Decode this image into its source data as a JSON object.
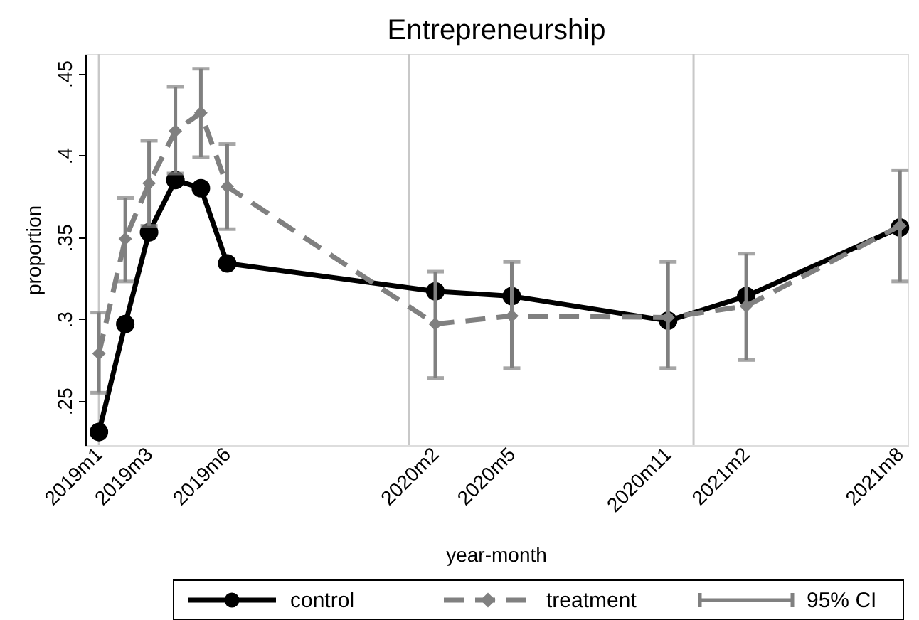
{
  "chart_data": {
    "type": "line",
    "title": "Entrepreneurship",
    "xlabel": "year-month",
    "ylabel": "proportion",
    "x": [
      "2019-01",
      "2019-02",
      "2019-03",
      "2019-04",
      "2019-05",
      "2019-06",
      "2020-02",
      "2020-05",
      "2020-11",
      "2021-02",
      "2021-08"
    ],
    "series": [
      {
        "name": "control",
        "color": "#000000",
        "marker": "circle",
        "line_style": "solid",
        "values": [
          0.231,
          0.297,
          0.353,
          0.385,
          0.38,
          0.334,
          0.317,
          0.314,
          0.299,
          0.314,
          0.356
        ]
      },
      {
        "name": "treatment",
        "color": "#808080",
        "marker": "diamond",
        "line_style": "dashed",
        "values": [
          0.279,
          0.349,
          0.383,
          0.415,
          0.426,
          0.381,
          0.297,
          0.302,
          0.301,
          0.308,
          0.357
        ],
        "errors": [
          [
            0.255,
            0.304
          ],
          [
            0.323,
            0.374
          ],
          [
            0.357,
            0.409
          ],
          [
            0.389,
            0.442
          ],
          [
            0.399,
            0.453
          ],
          [
            0.355,
            0.407
          ],
          [
            0.264,
            0.329
          ],
          [
            0.27,
            0.335
          ],
          [
            0.27,
            0.335
          ],
          [
            0.275,
            0.34
          ],
          [
            0.323,
            0.391
          ]
        ]
      }
    ],
    "ylim": [
      0.223,
      0.462
    ],
    "yticks": [
      {
        "value": 0.25,
        "label": ".25"
      },
      {
        "value": 0.3,
        "label": ".3"
      },
      {
        "value": 0.35,
        "label": ".35"
      },
      {
        "value": 0.4,
        "label": ".4"
      },
      {
        "value": 0.45,
        "label": ".45"
      }
    ],
    "xlim": [
      "2018-12-16",
      "2021-08-10"
    ],
    "xticks": [
      {
        "value": "2019-01",
        "label": "2019m1"
      },
      {
        "value": "2019-03",
        "label": "2019m3"
      },
      {
        "value": "2019-06",
        "label": "2019m6"
      },
      {
        "value": "2020-02",
        "label": "2020m2"
      },
      {
        "value": "2020-05",
        "label": "2020m5"
      },
      {
        "value": "2020-11",
        "label": "2020m11"
      },
      {
        "value": "2021-02",
        "label": "2021m2"
      },
      {
        "value": "2021-08",
        "label": "2021m8"
      }
    ],
    "ref_lines": [
      {
        "axis": "x",
        "value": "2019-01",
        "color": "#c8c8c8"
      },
      {
        "axis": "x",
        "value": "2020-01",
        "color": "#c8c8c8"
      },
      {
        "axis": "x",
        "value": "2020-12",
        "color": "#c8c8c8"
      }
    ],
    "annotations": [
      "95% CI"
    ],
    "grid": false,
    "legend": "bottom"
  }
}
